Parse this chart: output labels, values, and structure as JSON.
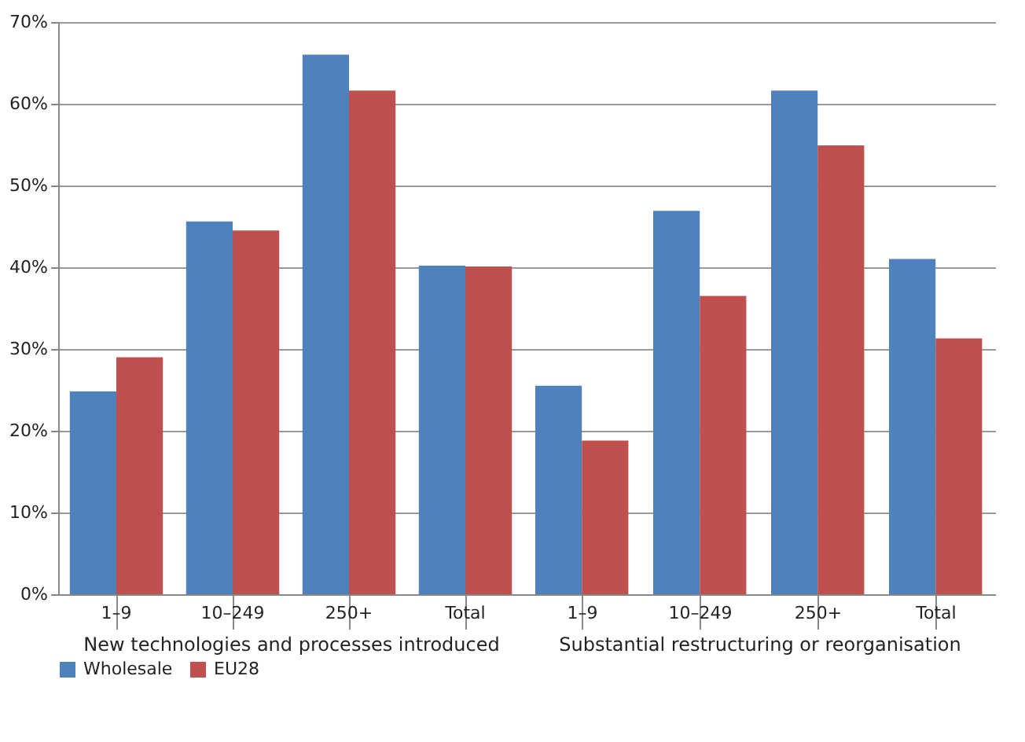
{
  "chart_data": [
    {
      "type": "bar",
      "categories": [
        "1–9",
        "10–249",
        "250+",
        "Total"
      ],
      "xlabel": "New technologies and processes introduced",
      "ylim": [
        0,
        70
      ],
      "yticks": [
        {
          "value": 0,
          "label": "0%"
        },
        {
          "value": 10,
          "label": "10%"
        },
        {
          "value": 20,
          "label": "20%"
        },
        {
          "value": 30,
          "label": "30%"
        },
        {
          "value": 40,
          "label": "40%"
        },
        {
          "value": 50,
          "label": "50%"
        },
        {
          "value": 60,
          "label": "60%"
        },
        {
          "value": 70,
          "label": "70%"
        }
      ],
      "grid": "y",
      "legend": "bottom",
      "series": [
        {
          "name": "Wholesale",
          "color": "#4f81bd",
          "values": [
            24.8,
            45.6,
            66.0,
            40.2
          ]
        },
        {
          "name": "EU28",
          "color": "#c0504d",
          "values": [
            29.0,
            44.5,
            61.6,
            40.1
          ]
        }
      ]
    },
    {
      "type": "bar",
      "categories": [
        "1–9",
        "10–249",
        "250+",
        "Total"
      ],
      "xlabel": "Substantial restructuring or reorganisation",
      "ylim": [
        0,
        70
      ],
      "yticks": [
        0,
        10,
        20,
        30,
        40,
        50,
        60,
        70
      ],
      "tick_labels": "x",
      "grid": "y",
      "series": [
        {
          "color": "#4f81bd",
          "values": [
            25.5,
            46.9,
            61.6,
            41.0
          ]
        },
        {
          "color": "#c0504d",
          "values": [
            18.8,
            36.5,
            54.9,
            31.3
          ]
        }
      ]
    }
  ]
}
